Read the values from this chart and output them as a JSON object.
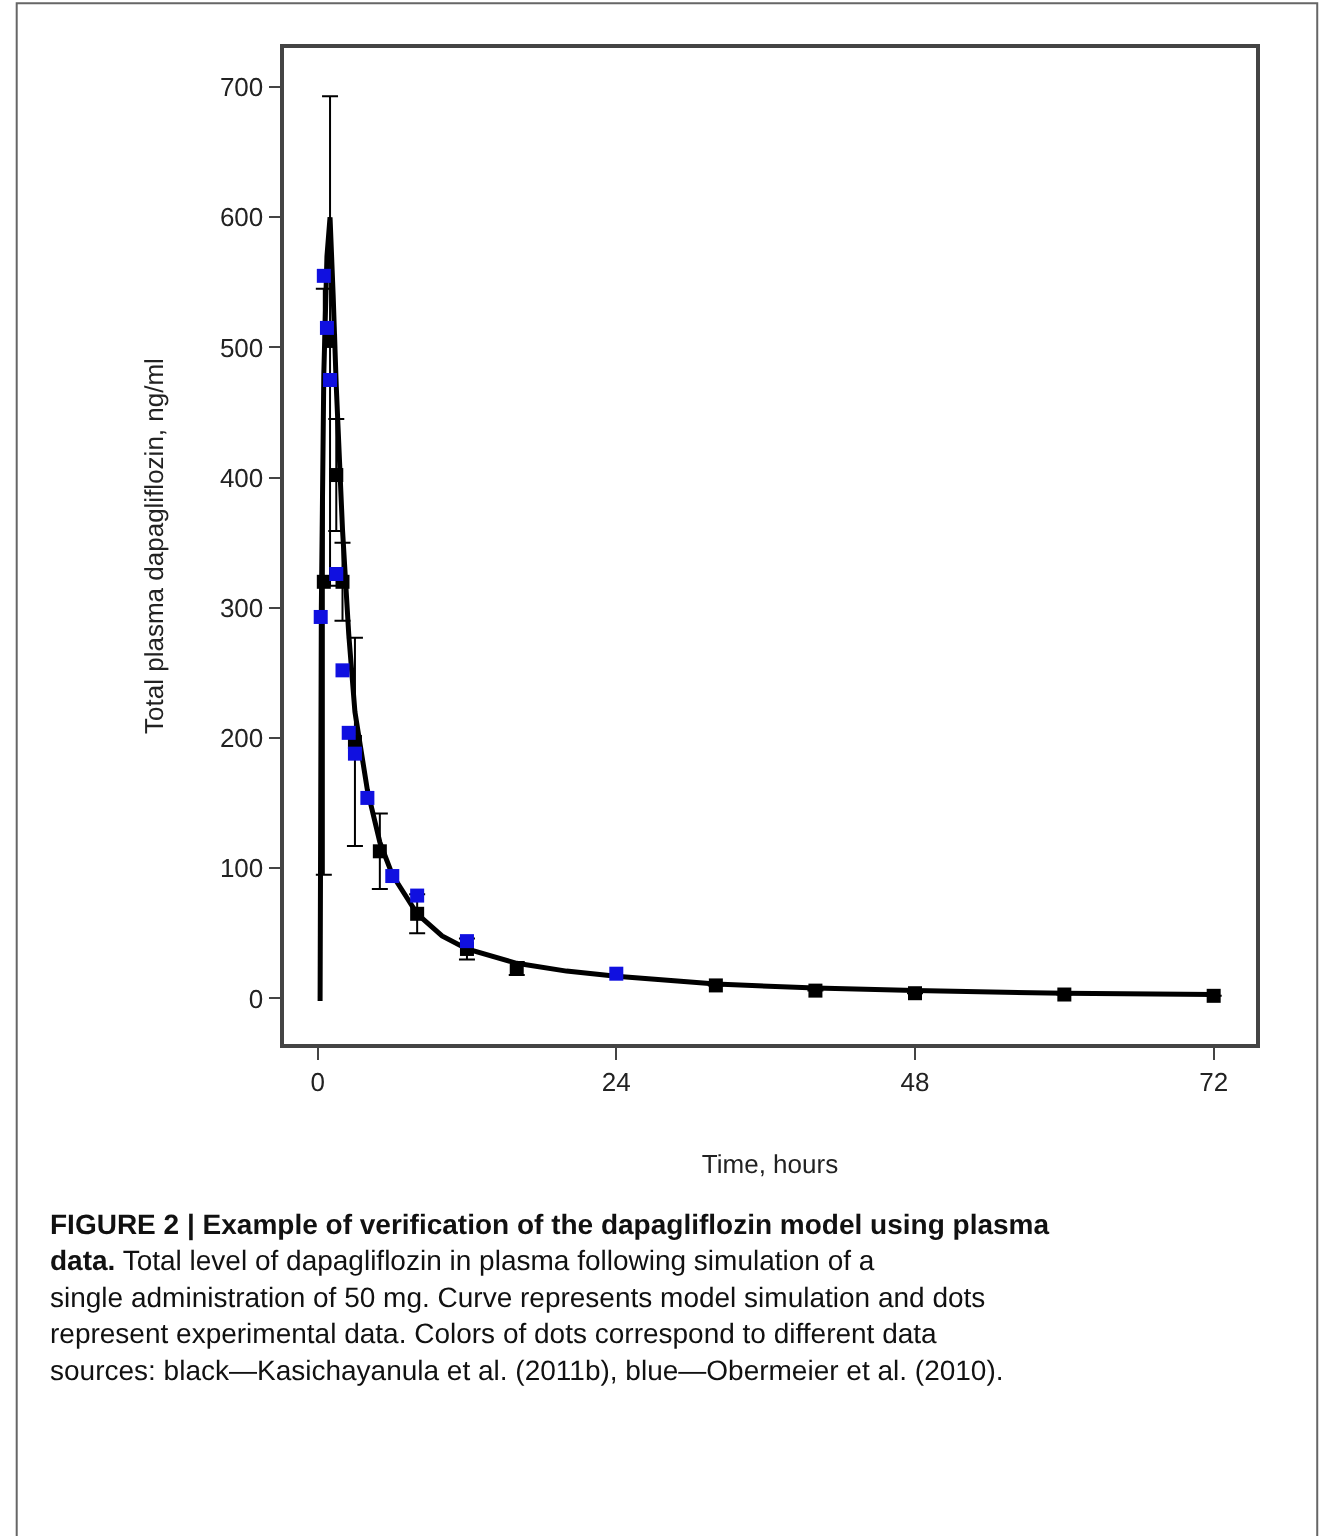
{
  "chart_data": {
    "type": "scatter",
    "xlabel": "Time, hours",
    "ylabel": "Total plasma dapagliflozin, ng/ml",
    "xlim": [
      -2.7,
      75.4
    ],
    "ylim": [
      -35,
      730
    ],
    "xticks": [
      0,
      24,
      48,
      72
    ],
    "yticks": [
      0,
      100,
      200,
      300,
      400,
      500,
      600,
      700
    ],
    "marker": "square",
    "series": [
      {
        "type": "line",
        "color": "#000000",
        "marker": "none",
        "line_style": "solid",
        "x": [
          0,
          0.2,
          0.3,
          0.5,
          0.75,
          1.0,
          1.25,
          1.5,
          2,
          2.5,
          3,
          4,
          5,
          6,
          8,
          10,
          12,
          16,
          20,
          24,
          32,
          40,
          48,
          60,
          72
        ],
        "values": [
          0,
          0,
          300,
          480,
          570,
          600,
          540,
          470,
          360,
          280,
          220,
          160,
          120,
          95,
          65,
          48,
          38,
          27,
          21,
          17,
          11,
          8,
          6,
          4,
          3
        ]
      },
      {
        "color": "#000000",
        "x": [
          0.5,
          1,
          1.5,
          2,
          3,
          5,
          8,
          12,
          16,
          24,
          32,
          40,
          48,
          60,
          72
        ],
        "values": [
          320,
          505,
          402,
          320,
          197,
          113,
          65,
          38,
          23,
          null,
          10,
          6,
          4,
          3,
          2
        ],
        "errors": [
          [
            95,
            545
          ],
          188,
          43,
          30,
          80,
          29,
          15,
          8,
          5,
          null,
          null,
          null,
          null,
          null,
          null
        ]
      },
      {
        "color": "#1010e0",
        "x": [
          0.25,
          0.5,
          0.75,
          1,
          1.5,
          2,
          2.5,
          3,
          4,
          6,
          8,
          12,
          24
        ],
        "values": [
          293,
          555,
          515,
          475,
          326,
          252,
          204,
          188,
          154,
          94,
          79,
          44,
          19
        ]
      }
    ],
    "annotations": [
      "FIGURE 2 | Example of verification of the dapagliflozin model using plasma data.",
      "Total level of dapagliflozin in plasma following simulation of a single administration of 50 mg. Curve represents model simulation and dots represent experimental data. Colors of dots correspond to different data sources: black—Kasichayanula et al. (2011b), blue—Obermeier et al. (2010)."
    ]
  }
}
